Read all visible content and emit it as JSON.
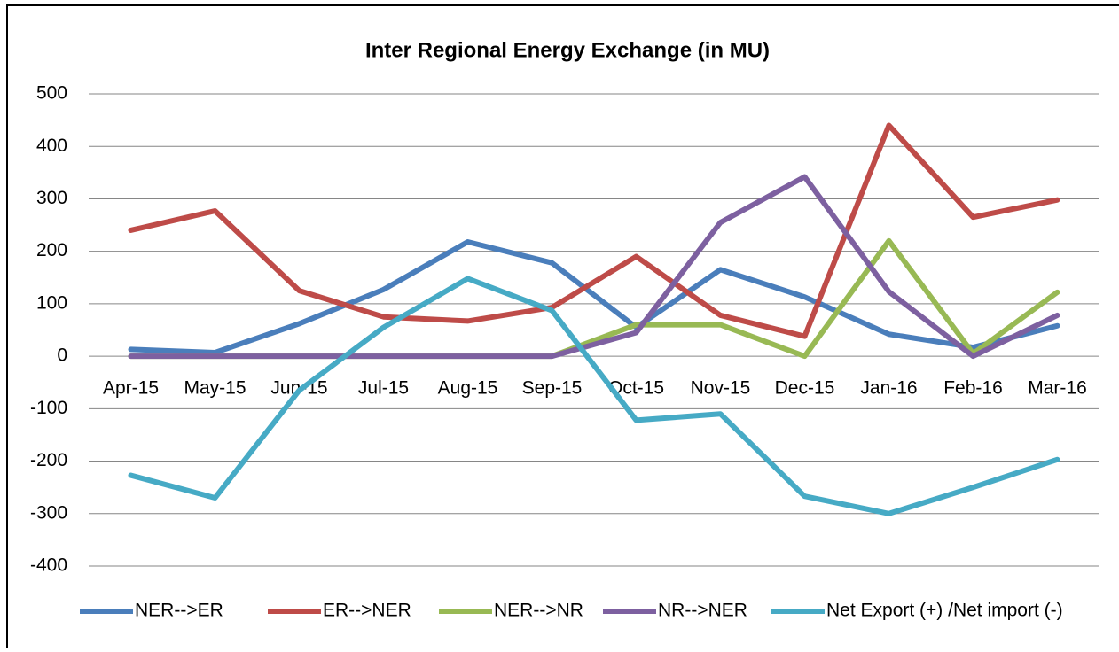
{
  "chart_data": {
    "type": "line",
    "title": "Inter Regional Energy Exchange (in MU)",
    "categories": [
      "Apr-15",
      "May-15",
      "Jun-15",
      "Jul-15",
      "Aug-15",
      "Sep-15",
      "Oct-15",
      "Nov-15",
      "Dec-15",
      "Jan-16",
      "Feb-16",
      "Mar-16"
    ],
    "series": [
      {
        "name": "NER-->ER",
        "color": "#4a7ebb",
        "values": [
          13,
          7,
          62,
          127,
          218,
          178,
          55,
          165,
          113,
          42,
          17,
          58
        ]
      },
      {
        "name": "ER-->NER",
        "color": "#be4b48",
        "values": [
          240,
          277,
          125,
          75,
          67,
          93,
          190,
          78,
          38,
          440,
          265,
          298
        ]
      },
      {
        "name": "NER-->NR",
        "color": "#98b954",
        "values": [
          0,
          0,
          0,
          0,
          0,
          0,
          60,
          60,
          0,
          220,
          5,
          122
        ]
      },
      {
        "name": "NR-->NER",
        "color": "#7d60a0",
        "values": [
          0,
          0,
          0,
          0,
          0,
          0,
          45,
          255,
          342,
          123,
          0,
          78
        ]
      },
      {
        "name": "Net Export (+) /Net import (-)",
        "color": "#46aac5",
        "values": [
          -227,
          -270,
          -65,
          55,
          148,
          87,
          -122,
          -110,
          -267,
          -300,
          -250,
          -197
        ]
      }
    ],
    "ylim": [
      -400,
      500
    ],
    "yticks": [
      -400,
      -300,
      -200,
      -100,
      0,
      100,
      200,
      300,
      400,
      500
    ],
    "grid": true,
    "legend": "bottom"
  }
}
